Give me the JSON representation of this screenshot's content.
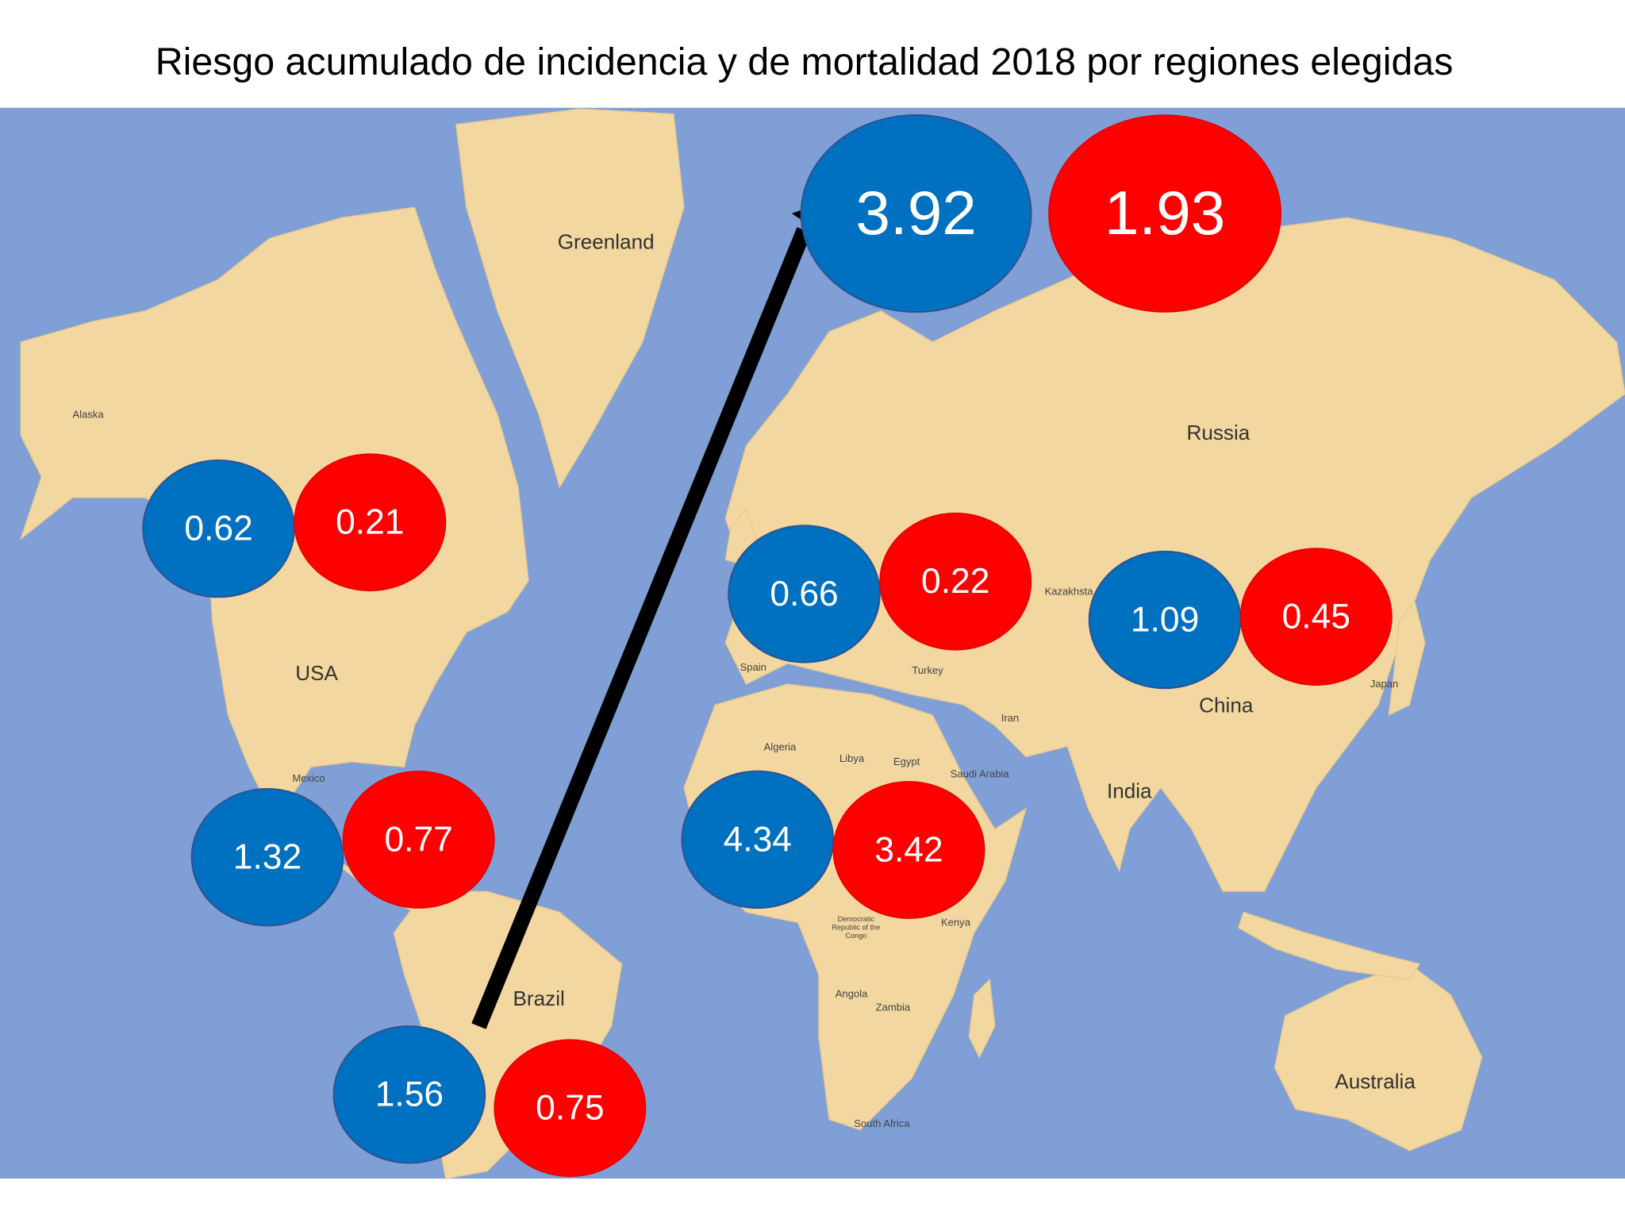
{
  "title": "Riesgo acumulado de incidencia y de mortalidad 2018 por regiones elegidas",
  "colors": {
    "incidence": "#0070c0",
    "mortality": "#ff0000",
    "ocean": "#7f9fd6",
    "land": "#f2d7a0",
    "arrow": "#000000"
  },
  "map_labels": {
    "greenland": "Greenland",
    "alaska": "Alaska",
    "russia": "Russia",
    "usa": "USA",
    "mexico": "Mexico",
    "brazil": "Brazil",
    "kazakhstan": "Kazakhsta",
    "china": "China",
    "iran": "Iran",
    "india": "India",
    "algeria": "Algeria",
    "libya": "Libya",
    "egypt": "Egypt",
    "saudi": "Saudi Arabia",
    "australia": "Australia",
    "drc": "Democratic Republic of the Congo",
    "kenya": "Kenya",
    "south_africa": "South Africa",
    "angola": "Angola",
    "zambia": "Zambia",
    "turkey": "Turkey",
    "spain": "Spain",
    "japan": "Japan"
  },
  "markers": {
    "highlight": {
      "incidence": "3.92",
      "mortality": "1.93"
    },
    "north_america": {
      "incidence": "0.62",
      "mortality": "0.21"
    },
    "europe": {
      "incidence": "0.66",
      "mortality": "0.22"
    },
    "east_asia": {
      "incidence": "1.09",
      "mortality": "0.45"
    },
    "central_america": {
      "incidence": "1.32",
      "mortality": "0.77"
    },
    "africa": {
      "incidence": "4.34",
      "mortality": "3.42"
    },
    "south_america": {
      "incidence": "1.56",
      "mortality": "0.75"
    }
  }
}
